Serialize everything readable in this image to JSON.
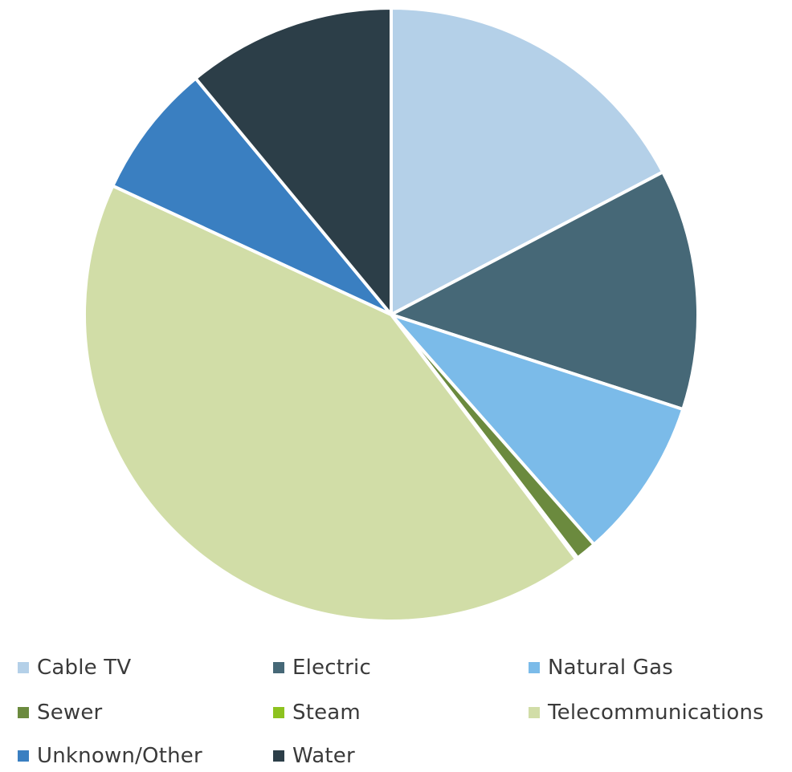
{
  "chart_data": {
    "type": "pie",
    "title": "",
    "legend_position": "bottom",
    "start_angle_deg": 0,
    "direction": "clockwise",
    "slices": [
      {
        "label": "Cable TV",
        "value": 17.3,
        "color": "#b4d0e8"
      },
      {
        "label": "Electric",
        "value": 12.7,
        "color": "#466877"
      },
      {
        "label": "Natural Gas",
        "value": 8.5,
        "color": "#7bbbe9"
      },
      {
        "label": "Sewer",
        "value": 1.1,
        "color": "#6b8a3e"
      },
      {
        "label": "Steam",
        "value": 0.1,
        "color": "#8dc21f"
      },
      {
        "label": "Telecommunications",
        "value": 42.2,
        "color": "#d1dda7"
      },
      {
        "label": "Unknown/Other",
        "value": 7.1,
        "color": "#3a7fc1"
      },
      {
        "label": "Water",
        "value": 11.0,
        "color": "#2c3e48"
      }
    ]
  }
}
